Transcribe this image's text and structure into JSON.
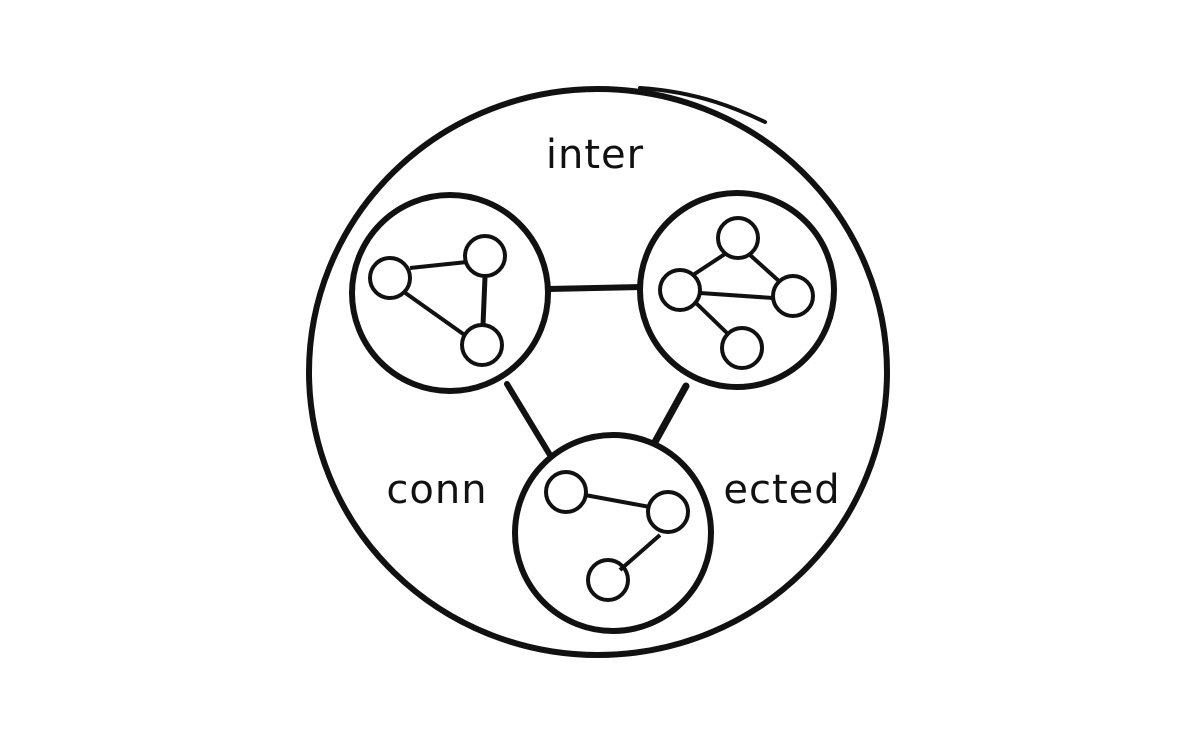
{
  "style": {
    "ink_color": "#111111",
    "background_color": "#ffffff"
  },
  "diagram": {
    "outer_circle": {
      "shape": "circle"
    },
    "labels": {
      "top": "inter",
      "left": "conn",
      "right": "ected"
    },
    "clusters": [
      {
        "id": "cluster-left",
        "nodes": [
          "n1",
          "n2",
          "n3"
        ],
        "edges": [
          [
            "n1",
            "n2"
          ],
          [
            "n2",
            "n3"
          ],
          [
            "n1",
            "n3"
          ]
        ]
      },
      {
        "id": "cluster-right",
        "nodes": [
          "n1",
          "n2",
          "n3",
          "n4"
        ],
        "edges": [
          [
            "n1",
            "n2"
          ],
          [
            "n1",
            "n3"
          ],
          [
            "n2",
            "n3"
          ],
          [
            "n2",
            "n4"
          ]
        ]
      },
      {
        "id": "cluster-bottom",
        "nodes": [
          "n1",
          "n2",
          "n3"
        ],
        "edges": [
          [
            "n1",
            "n2"
          ],
          [
            "n2",
            "n3"
          ]
        ]
      }
    ],
    "cluster_links": [
      [
        "cluster-left",
        "cluster-right"
      ],
      [
        "cluster-left",
        "cluster-bottom"
      ],
      [
        "cluster-right",
        "cluster-bottom"
      ]
    ]
  }
}
